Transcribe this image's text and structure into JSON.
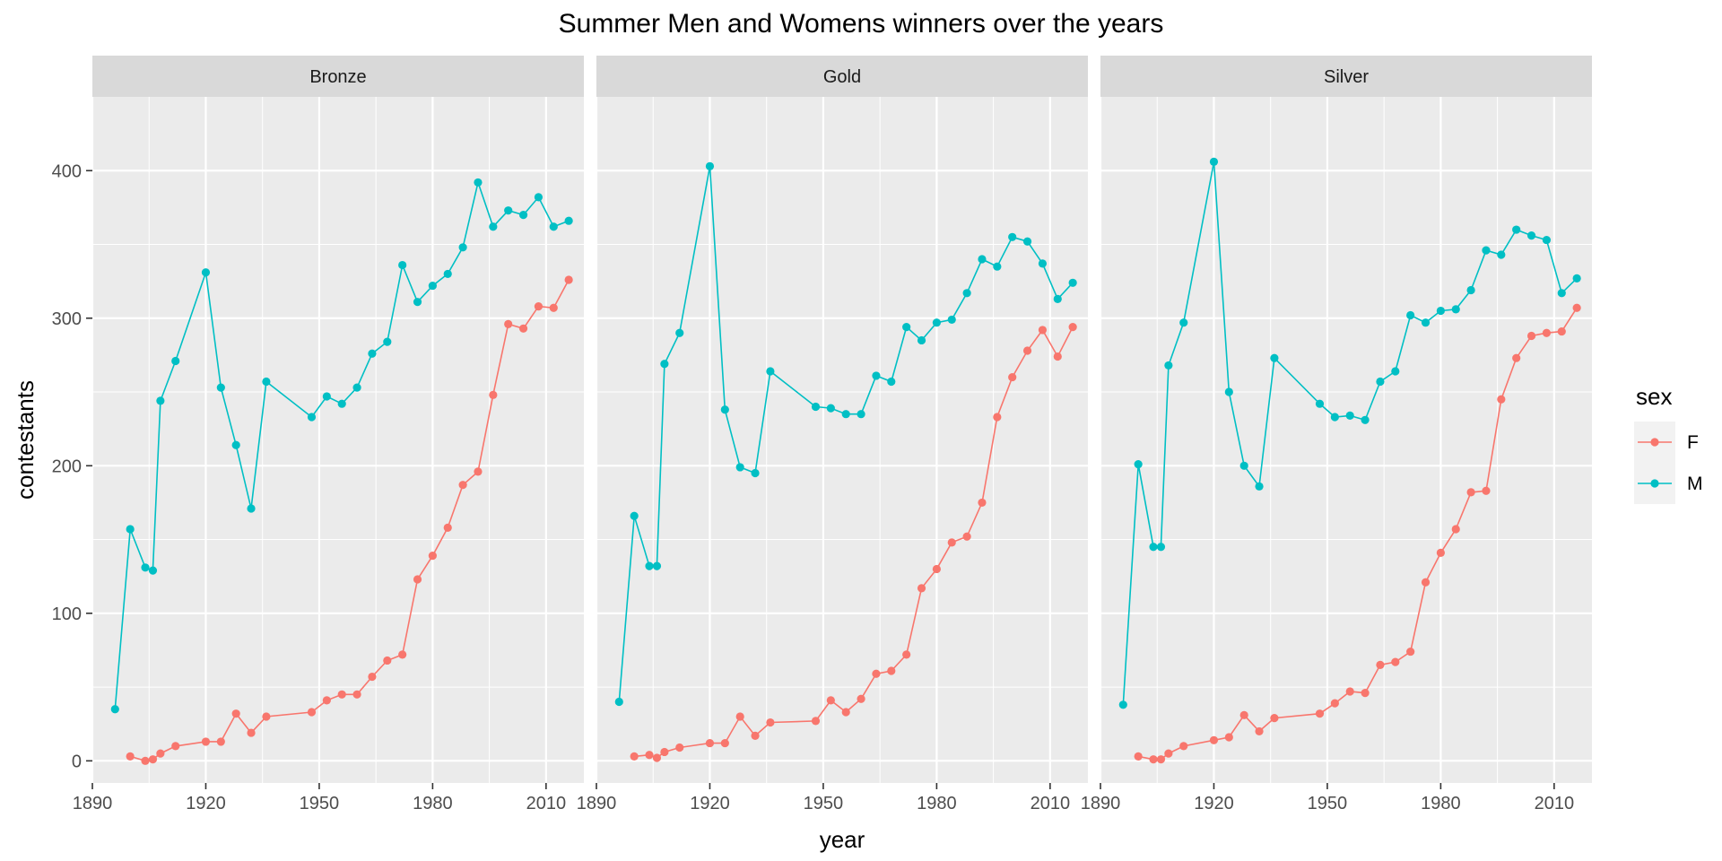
{
  "chart_data": {
    "type": "line",
    "title": "Summer Men and Womens winners over the years",
    "xlabel": "year",
    "ylabel": "contestants",
    "xlim": [
      1890,
      2020
    ],
    "ylim": [
      -15,
      450
    ],
    "x_ticks": [
      1890,
      1920,
      1950,
      1980,
      2010
    ],
    "y_ticks": [
      0,
      100,
      200,
      300,
      400
    ],
    "grid": true,
    "legend": {
      "title": "sex",
      "position": "right",
      "entries": [
        {
          "label": "F",
          "color": "#F8766D"
        },
        {
          "label": "M",
          "color": "#00BFC4"
        }
      ]
    },
    "facets": [
      {
        "label": "Bronze",
        "series": [
          {
            "name": "F",
            "color": "#F8766D",
            "points": [
              [
                1900,
                3
              ],
              [
                1904,
                0
              ],
              [
                1906,
                1
              ],
              [
                1908,
                5
              ],
              [
                1912,
                10
              ],
              [
                1920,
                13
              ],
              [
                1924,
                13
              ],
              [
                1928,
                32
              ],
              [
                1932,
                19
              ],
              [
                1936,
                30
              ],
              [
                1948,
                33
              ],
              [
                1952,
                41
              ],
              [
                1956,
                45
              ],
              [
                1960,
                45
              ],
              [
                1964,
                57
              ],
              [
                1968,
                68
              ],
              [
                1972,
                72
              ],
              [
                1976,
                123
              ],
              [
                1980,
                139
              ],
              [
                1984,
                158
              ],
              [
                1988,
                187
              ],
              [
                1992,
                196
              ],
              [
                1996,
                248
              ],
              [
                2000,
                296
              ],
              [
                2004,
                293
              ],
              [
                2008,
                308
              ],
              [
                2012,
                307
              ],
              [
                2016,
                326
              ]
            ]
          },
          {
            "name": "M",
            "color": "#00BFC4",
            "points": [
              [
                1896,
                35
              ],
              [
                1900,
                157
              ],
              [
                1904,
                131
              ],
              [
                1906,
                129
              ],
              [
                1908,
                244
              ],
              [
                1912,
                271
              ],
              [
                1920,
                331
              ],
              [
                1924,
                253
              ],
              [
                1928,
                214
              ],
              [
                1932,
                171
              ],
              [
                1936,
                257
              ],
              [
                1948,
                233
              ],
              [
                1952,
                247
              ],
              [
                1956,
                242
              ],
              [
                1960,
                253
              ],
              [
                1964,
                276
              ],
              [
                1968,
                284
              ],
              [
                1972,
                336
              ],
              [
                1976,
                311
              ],
              [
                1980,
                322
              ],
              [
                1984,
                330
              ],
              [
                1988,
                348
              ],
              [
                1992,
                392
              ],
              [
                1996,
                362
              ],
              [
                2000,
                373
              ],
              [
                2004,
                370
              ],
              [
                2008,
                382
              ],
              [
                2012,
                362
              ],
              [
                2016,
                366
              ]
            ]
          }
        ]
      },
      {
        "label": "Gold",
        "series": [
          {
            "name": "F",
            "color": "#F8766D",
            "points": [
              [
                1900,
                3
              ],
              [
                1904,
                4
              ],
              [
                1906,
                2
              ],
              [
                1908,
                6
              ],
              [
                1912,
                9
              ],
              [
                1920,
                12
              ],
              [
                1924,
                12
              ],
              [
                1928,
                30
              ],
              [
                1932,
                17
              ],
              [
                1936,
                26
              ],
              [
                1948,
                27
              ],
              [
                1952,
                41
              ],
              [
                1956,
                33
              ],
              [
                1960,
                42
              ],
              [
                1964,
                59
              ],
              [
                1968,
                61
              ],
              [
                1972,
                72
              ],
              [
                1976,
                117
              ],
              [
                1980,
                130
              ],
              [
                1984,
                148
              ],
              [
                1988,
                152
              ],
              [
                1992,
                175
              ],
              [
                1996,
                233
              ],
              [
                2000,
                260
              ],
              [
                2004,
                278
              ],
              [
                2008,
                292
              ],
              [
                2012,
                274
              ],
              [
                2016,
                294
              ]
            ]
          },
          {
            "name": "M",
            "color": "#00BFC4",
            "points": [
              [
                1896,
                40
              ],
              [
                1900,
                166
              ],
              [
                1904,
                132
              ],
              [
                1906,
                132
              ],
              [
                1908,
                269
              ],
              [
                1912,
                290
              ],
              [
                1920,
                403
              ],
              [
                1924,
                238
              ],
              [
                1928,
                199
              ],
              [
                1932,
                195
              ],
              [
                1936,
                264
              ],
              [
                1948,
                240
              ],
              [
                1952,
                239
              ],
              [
                1956,
                235
              ],
              [
                1960,
                235
              ],
              [
                1964,
                261
              ],
              [
                1968,
                257
              ],
              [
                1972,
                294
              ],
              [
                1976,
                285
              ],
              [
                1980,
                297
              ],
              [
                1984,
                299
              ],
              [
                1988,
                317
              ],
              [
                1992,
                340
              ],
              [
                1996,
                335
              ],
              [
                2000,
                355
              ],
              [
                2004,
                352
              ],
              [
                2008,
                337
              ],
              [
                2012,
                313
              ],
              [
                2016,
                324
              ]
            ]
          }
        ]
      },
      {
        "label": "Silver",
        "series": [
          {
            "name": "F",
            "color": "#F8766D",
            "points": [
              [
                1900,
                3
              ],
              [
                1904,
                1
              ],
              [
                1906,
                1
              ],
              [
                1908,
                5
              ],
              [
                1912,
                10
              ],
              [
                1920,
                14
              ],
              [
                1924,
                16
              ],
              [
                1928,
                31
              ],
              [
                1932,
                20
              ],
              [
                1936,
                29
              ],
              [
                1948,
                32
              ],
              [
                1952,
                39
              ],
              [
                1956,
                47
              ],
              [
                1960,
                46
              ],
              [
                1964,
                65
              ],
              [
                1968,
                67
              ],
              [
                1972,
                74
              ],
              [
                1976,
                121
              ],
              [
                1980,
                141
              ],
              [
                1984,
                157
              ],
              [
                1988,
                182
              ],
              [
                1992,
                183
              ],
              [
                1996,
                245
              ],
              [
                2000,
                273
              ],
              [
                2004,
                288
              ],
              [
                2008,
                290
              ],
              [
                2012,
                291
              ],
              [
                2016,
                307
              ]
            ]
          },
          {
            "name": "M",
            "color": "#00BFC4",
            "points": [
              [
                1896,
                38
              ],
              [
                1900,
                201
              ],
              [
                1904,
                145
              ],
              [
                1906,
                145
              ],
              [
                1908,
                268
              ],
              [
                1912,
                297
              ],
              [
                1920,
                406
              ],
              [
                1924,
                250
              ],
              [
                1928,
                200
              ],
              [
                1932,
                186
              ],
              [
                1936,
                273
              ],
              [
                1948,
                242
              ],
              [
                1952,
                233
              ],
              [
                1956,
                234
              ],
              [
                1960,
                231
              ],
              [
                1964,
                257
              ],
              [
                1968,
                264
              ],
              [
                1972,
                302
              ],
              [
                1976,
                297
              ],
              [
                1980,
                305
              ],
              [
                1984,
                306
              ],
              [
                1988,
                319
              ],
              [
                1992,
                346
              ],
              [
                1996,
                343
              ],
              [
                2000,
                360
              ],
              [
                2004,
                356
              ],
              [
                2008,
                353
              ],
              [
                2012,
                317
              ],
              [
                2016,
                327
              ]
            ]
          }
        ]
      }
    ]
  }
}
